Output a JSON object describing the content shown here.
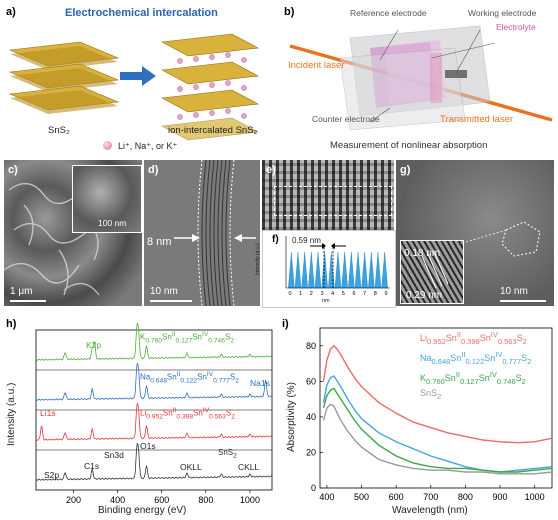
{
  "panels": {
    "a": {
      "letter": "a)",
      "title": "Electrochemical intercalation",
      "left_label": "SnS₂",
      "right_label": "ion-intercalated SnS₂",
      "ions_label": "Li⁺, Na⁺, or K⁺",
      "colors": {
        "title": "#2a63b0",
        "arrow": "#2f6fc0",
        "ion": "#e7a3c6",
        "layer": "#d8b23a"
      }
    },
    "b": {
      "letter": "b)",
      "reference": "Reference electrode",
      "working": "Working electrode",
      "electrolyte": "Electrolyte",
      "incident": "Incident laser",
      "counter": "Counter electrode",
      "transmitted": "Transmitted laser",
      "caption": "Measurement of nonlinear absorption",
      "colors": {
        "laser": "#e8731f",
        "electrolyte": "#d64fb4"
      }
    },
    "c": {
      "letter": "c)",
      "scale_main": "1 μm",
      "scale_inset": "100 nm"
    },
    "d": {
      "letter": "d)",
      "thickness": "8 nm",
      "scale": "10 nm"
    },
    "e": {
      "letter": "e)"
    },
    "f": {
      "letter": "f)",
      "spacing": "0.59 nm",
      "ylabel": "Intensity (a.u.)",
      "xlabel": "nm",
      "xticks": [
        "0",
        "1",
        "2",
        "3",
        "4",
        "5",
        "6",
        "7",
        "8",
        "9"
      ],
      "peak_count": 15
    },
    "g": {
      "letter": "g)",
      "d1": "0.18 nm",
      "d2": "0.29 nm",
      "scale": "10 nm"
    }
  },
  "chart_data": [
    {
      "type": "line",
      "panel": "h)",
      "xlabel": "Binding energy (eV)",
      "ylabel": "Intensity (a.u.)",
      "xticks": [
        "200",
        "400",
        "600",
        "800",
        "1000"
      ],
      "xlim": [
        30,
        1100
      ],
      "series": [
        {
          "name": "K0.760SnII0.127SnIV0.746S2",
          "color": "#4caf3a",
          "label_html": "K<sub>0.760</sub>Sn<sup>II</sup><sub>0.127</sub>Sn<sup>IV</sup><sub>0.746</sub>S<sub>2</sub>"
        },
        {
          "name": "Na0.648SnII0.122SnIV0.777S2",
          "color": "#2b6fbf",
          "label_html": "Na<sub>0.648</sub>Sn<sup>II</sup><sub>0.122</sub>Sn<sup>IV</sup><sub>0.777</sub>S<sub>2</sub>"
        },
        {
          "name": "Li0.952SnII0.398SnIV0.563S2",
          "color": "#e0373a",
          "label_html": "Li<sub>0.952</sub>Sn<sup>II</sup><sub>0.398</sub>Sn<sup>IV</sup><sub>0.563</sub>S<sub>2</sub>"
        },
        {
          "name": "SnS2",
          "color": "#333333",
          "label_html": "SnS<sub>2</sub>"
        }
      ],
      "annotations": {
        "K2p": "K2p",
        "Na1s": "Na1s",
        "Li1s": "Li1s",
        "S2p": "S2p",
        "C1s": "C1s",
        "Sn3d": "Sn3d",
        "O1s": "O1s",
        "OKLL": "OKLL",
        "CKLL": "CKLL"
      }
    },
    {
      "type": "line",
      "panel": "i)",
      "xlabel": "Wavelength (nm)",
      "ylabel": "Absorptivity (%)",
      "xticks": [
        400,
        500,
        600,
        700,
        800,
        900,
        1000
      ],
      "yticks": [
        0,
        20,
        40,
        60,
        80
      ],
      "xlim": [
        380,
        1050
      ],
      "ylim": [
        0,
        90
      ],
      "series": [
        {
          "name": "Li0.952SnII0.398SnIV0.563S2",
          "color": "#ee6a6a",
          "label_html": "Li<sub>0.952</sub>Sn<sup>II</sup><sub>0.398</sub>Sn<sup>IV</sup><sub>0.563</sub>S<sub>2</sub>",
          "x": [
            390,
            400,
            410,
            420,
            430,
            440,
            460,
            480,
            500,
            550,
            600,
            650,
            700,
            750,
            800,
            850,
            900,
            950,
            1000,
            1050
          ],
          "y": [
            60,
            72,
            78,
            80,
            78,
            75,
            68,
            62,
            57,
            48,
            42,
            37,
            34,
            31,
            29,
            27,
            26,
            25.5,
            26,
            28
          ]
        },
        {
          "name": "Na0.648SnII0.122SnIV0.777S2",
          "color": "#4aa3df",
          "label_html": "Na<sub>0.648</sub>Sn<sup>II</sup><sub>0.122</sub>Sn<sup>IV</sup><sub>0.777</sub>S<sub>2</sub>",
          "x": [
            390,
            400,
            410,
            420,
            430,
            440,
            460,
            480,
            500,
            550,
            600,
            650,
            700,
            750,
            800,
            850,
            900,
            950,
            1000,
            1050
          ],
          "y": [
            48,
            58,
            62,
            63,
            60,
            57,
            50,
            44,
            39,
            31,
            26,
            22,
            18,
            15,
            12,
            10,
            9,
            10,
            11,
            12
          ]
        },
        {
          "name": "K0.760SnII0.127SnIV0.746S2",
          "color": "#3aa84a",
          "label_html": "K<sub>0.760</sub>Sn<sup>II</sup><sub>0.127</sub>Sn<sup>IV</sup><sub>0.746</sub>S<sub>2</sub>",
          "x": [
            390,
            400,
            410,
            420,
            430,
            440,
            460,
            480,
            500,
            550,
            600,
            650,
            700,
            750,
            800,
            850,
            900,
            950,
            1000,
            1050
          ],
          "y": [
            45,
            52,
            55,
            56,
            53,
            50,
            44,
            38,
            33,
            24,
            18,
            14,
            12,
            11,
            11,
            10,
            9,
            9,
            10,
            11
          ]
        },
        {
          "name": "SnS2",
          "color": "#9a9a9a",
          "label_html": "SnS<sub>2</sub>",
          "x": [
            390,
            400,
            410,
            420,
            430,
            440,
            460,
            480,
            500,
            550,
            600,
            650,
            700,
            750,
            800,
            850,
            900,
            950,
            1000,
            1050
          ],
          "y": [
            38,
            45,
            47,
            46,
            42,
            38,
            32,
            27,
            23,
            16,
            13,
            11,
            10,
            10,
            9,
            9,
            8,
            8,
            8,
            9
          ]
        }
      ]
    }
  ]
}
